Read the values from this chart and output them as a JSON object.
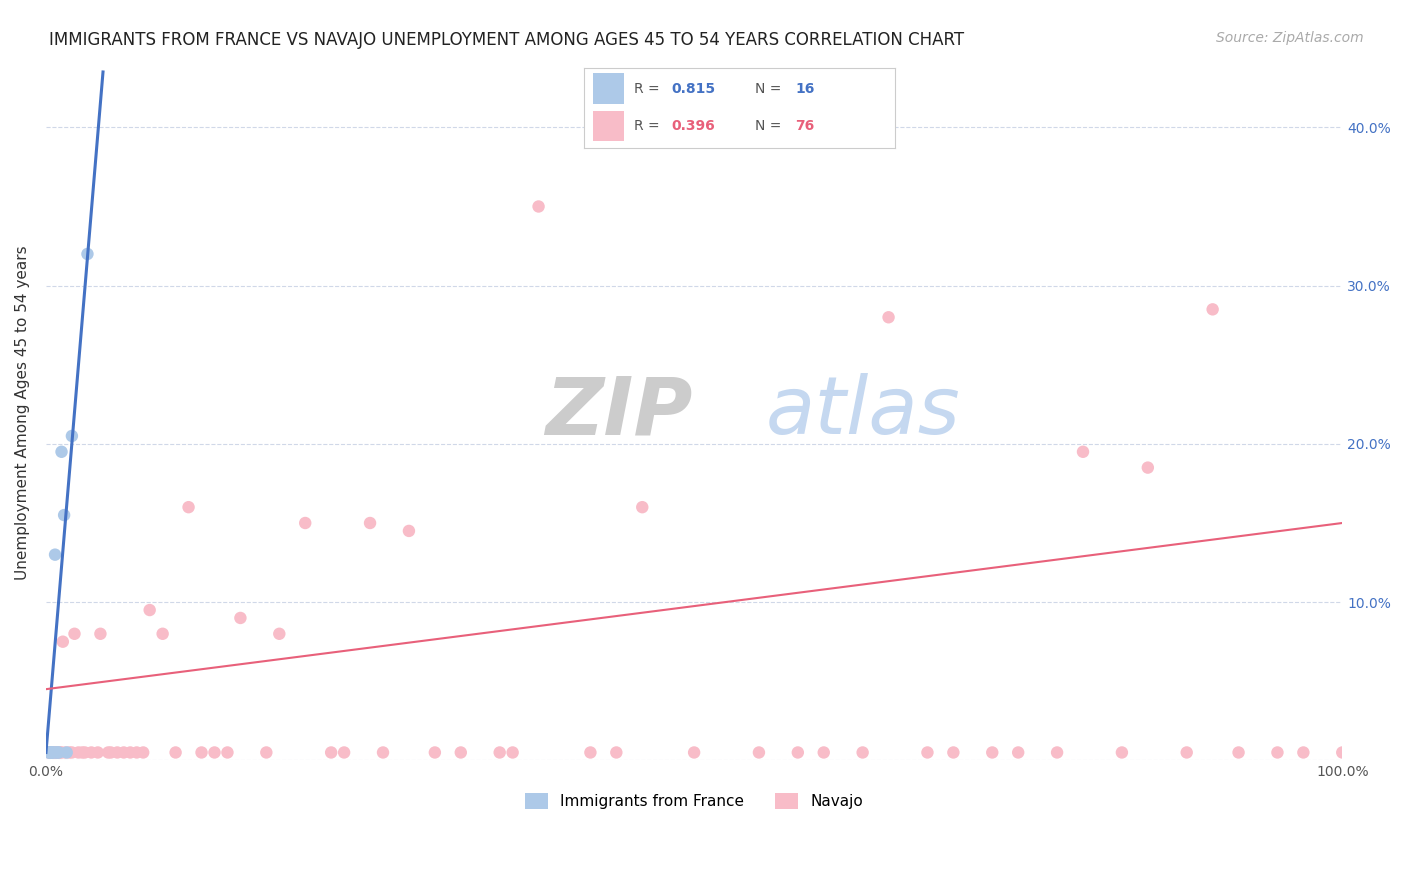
{
  "title": "IMMIGRANTS FROM FRANCE VS NAVAJO UNEMPLOYMENT AMONG AGES 45 TO 54 YEARS CORRELATION CHART",
  "source": "Source: ZipAtlas.com",
  "ylabel": "Unemployment Among Ages 45 to 54 years",
  "xlim": [
    0.0,
    1.0
  ],
  "ylim": [
    0.0,
    0.44
  ],
  "xticks": [
    0.0,
    0.1,
    0.2,
    0.3,
    0.4,
    0.5,
    0.6,
    0.7,
    0.8,
    0.9,
    1.0
  ],
  "yticks": [
    0.0,
    0.1,
    0.2,
    0.3,
    0.4
  ],
  "right_ytick_labels": [
    "",
    "10.0%",
    "20.0%",
    "30.0%",
    "40.0%"
  ],
  "blue_scatter_x": [
    0.002,
    0.003,
    0.003,
    0.004,
    0.004,
    0.005,
    0.006,
    0.007,
    0.008,
    0.009,
    0.01,
    0.012,
    0.014,
    0.016,
    0.02,
    0.032
  ],
  "blue_scatter_y": [
    0.005,
    0.005,
    0.005,
    0.005,
    0.005,
    0.005,
    0.005,
    0.13,
    0.005,
    0.005,
    0.005,
    0.195,
    0.155,
    0.005,
    0.205,
    0.32
  ],
  "pink_scatter_x": [
    0.002,
    0.003,
    0.004,
    0.004,
    0.005,
    0.005,
    0.006,
    0.007,
    0.007,
    0.008,
    0.009,
    0.01,
    0.011,
    0.012,
    0.013,
    0.015,
    0.018,
    0.02,
    0.022,
    0.025,
    0.028,
    0.03,
    0.035,
    0.04,
    0.042,
    0.048,
    0.05,
    0.055,
    0.06,
    0.065,
    0.07,
    0.075,
    0.08,
    0.09,
    0.1,
    0.11,
    0.13,
    0.15,
    0.18,
    0.2,
    0.23,
    0.25,
    0.28,
    0.32,
    0.35,
    0.38,
    0.42,
    0.46,
    0.5,
    0.55,
    0.6,
    0.65,
    0.7,
    0.75,
    0.8,
    0.85,
    0.9,
    0.95,
    1.0,
    0.58,
    0.63,
    0.68,
    0.73,
    0.78,
    0.83,
    0.88,
    0.92,
    0.97,
    0.44,
    0.36,
    0.3,
    0.26,
    0.22,
    0.17,
    0.14,
    0.12
  ],
  "pink_scatter_y": [
    0.005,
    0.005,
    0.005,
    0.005,
    0.005,
    0.005,
    0.005,
    0.005,
    0.005,
    0.005,
    0.005,
    0.005,
    0.005,
    0.005,
    0.075,
    0.005,
    0.005,
    0.005,
    0.08,
    0.005,
    0.005,
    0.005,
    0.005,
    0.005,
    0.08,
    0.005,
    0.005,
    0.005,
    0.005,
    0.005,
    0.005,
    0.005,
    0.095,
    0.08,
    0.005,
    0.16,
    0.005,
    0.09,
    0.08,
    0.15,
    0.005,
    0.15,
    0.145,
    0.005,
    0.005,
    0.35,
    0.005,
    0.16,
    0.005,
    0.005,
    0.005,
    0.28,
    0.005,
    0.005,
    0.195,
    0.185,
    0.285,
    0.005,
    0.005,
    0.005,
    0.005,
    0.005,
    0.005,
    0.005,
    0.005,
    0.005,
    0.005,
    0.005,
    0.005,
    0.005,
    0.005,
    0.005,
    0.005,
    0.005,
    0.005,
    0.005
  ],
  "blue_line_x": [
    0.0,
    0.044
  ],
  "blue_line_y": [
    0.005,
    0.435
  ],
  "pink_line_x": [
    0.0,
    1.0
  ],
  "pink_line_y": [
    0.045,
    0.15
  ],
  "scatter_size": 80,
  "blue_scatter_color": "#adc9e8",
  "blue_scatter_edge": "#adc9e8",
  "pink_scatter_color": "#f8bcc8",
  "pink_scatter_edge": "#f8bcc8",
  "blue_line_color": "#4472c4",
  "pink_line_color": "#e8607a",
  "grid_color": "#d0d8e8",
  "background_color": "#ffffff",
  "title_fontsize": 12,
  "label_fontsize": 11,
  "tick_fontsize": 10,
  "source_fontsize": 10,
  "legend_R1": "0.815",
  "legend_N1": "16",
  "legend_R2": "0.396",
  "legend_N2": "76",
  "legend_color1": "#4472c4",
  "legend_color2": "#e8607a"
}
